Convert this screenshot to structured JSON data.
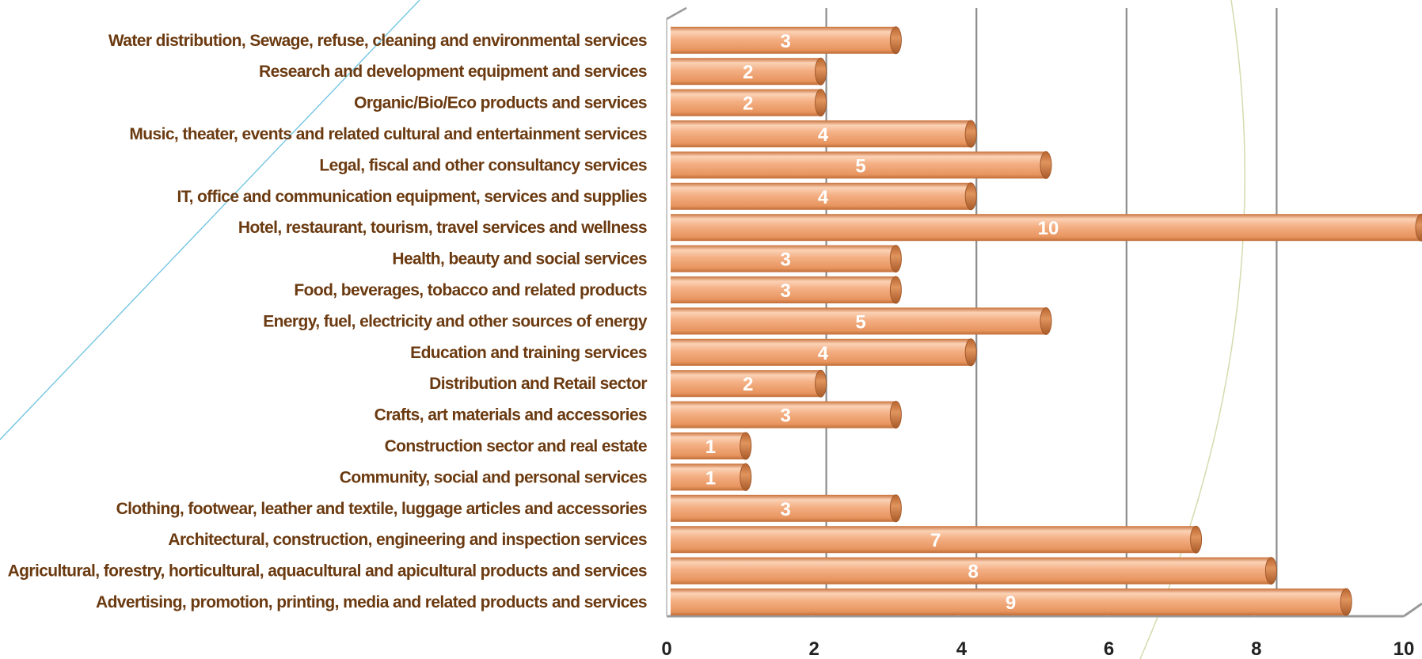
{
  "chart_data": {
    "type": "bar",
    "orientation": "horizontal",
    "categories": [
      "Advertising, promotion, printing, media and related products and services",
      "Agricultural, forestry, horticultural, aquacultural and apicultural products and services",
      "Architectural, construction, engineering and inspection services",
      "Clothing, footwear, leather and textile, luggage articles and accessories",
      "Community, social and personal services",
      "Construction sector and real estate",
      "Crafts, art materials and accessories",
      "Distribution and Retail sector",
      "Education and training services",
      "Energy, fuel, electricity and other sources of energy",
      "Food, beverages, tobacco and related products",
      "Health, beauty and social services",
      "Hotel, restaurant, tourism, travel services and wellness",
      "IT, office and communication equipment, services and supplies",
      "Legal, fiscal and other consultancy services",
      "Music, theater, events and related cultural and entertainment services",
      "Organic/Bio/Eco products and services",
      "Research and development equipment and services",
      "Water distribution, Sewage, refuse, cleaning and environmental services"
    ],
    "values": [
      9,
      8,
      7,
      3,
      1,
      1,
      3,
      2,
      4,
      5,
      3,
      3,
      10,
      4,
      5,
      4,
      2,
      2,
      3
    ],
    "xlim": [
      0,
      10
    ],
    "xticks": [
      "0",
      "2",
      "4",
      "6",
      "8",
      "10"
    ],
    "data_labels": true,
    "grid": true,
    "legend": "none",
    "title": "",
    "xlabel": "",
    "ylabel": "",
    "colors": {
      "bar": "#f2aa7e",
      "bar_light": "#fbd2b6",
      "bar_dark": "#c9733c",
      "bar_end": "#b96a3a",
      "category_text": "#6b3a10",
      "tick_text": "#222222",
      "gridline": "#8c8c8c",
      "decor_line_blue": "#6cc2e0",
      "decor_line_green": "#d3dcae"
    }
  }
}
